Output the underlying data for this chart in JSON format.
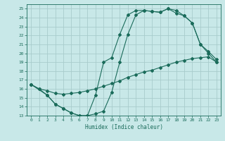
{
  "xlabel": "Humidex (Indice chaleur)",
  "xlim": [
    -0.5,
    23.5
  ],
  "ylim": [
    13,
    25.5
  ],
  "xticks": [
    0,
    1,
    2,
    3,
    4,
    5,
    6,
    7,
    8,
    9,
    10,
    11,
    12,
    13,
    14,
    15,
    16,
    17,
    18,
    19,
    20,
    21,
    22,
    23
  ],
  "yticks": [
    13,
    14,
    15,
    16,
    17,
    18,
    19,
    20,
    21,
    22,
    23,
    24,
    25
  ],
  "bg_color": "#c8e8e8",
  "grid_color": "#a8cccc",
  "line_color": "#1a6b5a",
  "curve1_x": [
    0,
    1,
    2,
    3,
    4,
    5,
    6,
    7,
    8,
    9,
    10,
    11,
    12,
    13,
    14,
    15,
    16,
    17,
    18,
    19,
    20,
    21,
    22,
    23
  ],
  "curve1_y": [
    16.5,
    16.0,
    15.3,
    14.3,
    13.8,
    13.3,
    13.0,
    13.0,
    13.2,
    13.5,
    15.6,
    19.0,
    22.1,
    24.3,
    24.8,
    24.7,
    24.6,
    25.0,
    24.8,
    24.2,
    23.4,
    21.0,
    20.0,
    19.0
  ],
  "curve2_x": [
    0,
    2,
    3,
    4,
    5,
    6,
    7,
    8,
    9,
    10,
    11,
    12,
    13,
    14,
    15,
    16,
    17,
    18,
    19,
    20,
    21,
    22,
    23
  ],
  "curve2_y": [
    16.5,
    15.3,
    14.3,
    13.8,
    13.3,
    13.0,
    13.0,
    15.3,
    19.0,
    19.5,
    22.1,
    24.3,
    24.8,
    24.8,
    24.7,
    24.6,
    25.0,
    24.5,
    24.2,
    23.4,
    21.0,
    20.2,
    19.3
  ],
  "curve3_x": [
    0,
    1,
    2,
    3,
    4,
    5,
    6,
    7,
    8,
    9,
    10,
    11,
    12,
    13,
    14,
    15,
    16,
    17,
    18,
    19,
    20,
    21,
    22,
    23
  ],
  "curve3_y": [
    16.5,
    16.0,
    15.8,
    15.5,
    15.4,
    15.5,
    15.6,
    15.8,
    16.0,
    16.3,
    16.6,
    16.9,
    17.3,
    17.6,
    17.9,
    18.1,
    18.4,
    18.7,
    19.0,
    19.2,
    19.4,
    19.5,
    19.6,
    19.0
  ]
}
